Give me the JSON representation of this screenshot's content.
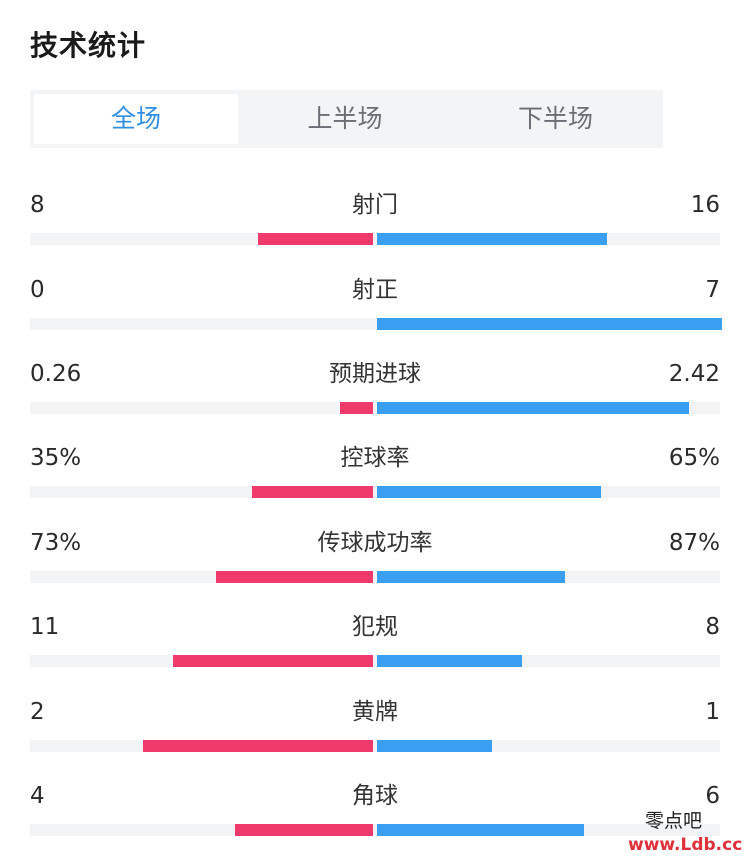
{
  "header": {
    "title": "技术统计"
  },
  "tabs": [
    {
      "label": "全场",
      "active": true
    },
    {
      "label": "上半场",
      "active": false
    },
    {
      "label": "下半场",
      "active": false
    }
  ],
  "stats": [
    {
      "label": "射门",
      "home": "8",
      "away": "16",
      "home_value": 8,
      "away_value": 16
    },
    {
      "label": "射正",
      "home": "0",
      "away": "7",
      "home_value": 0,
      "away_value": 7
    },
    {
      "label": "预期进球",
      "home": "0.26",
      "away": "2.42",
      "home_value": 0.26,
      "away_value": 2.42
    },
    {
      "label": "控球率",
      "home": "35%",
      "away": "65%",
      "home_value": 35,
      "away_value": 65
    },
    {
      "label": "传球成功率",
      "home": "73%",
      "away": "87%",
      "home_value": 73,
      "away_value": 87
    },
    {
      "label": "犯规",
      "home": "11",
      "away": "8",
      "home_value": 11,
      "away_value": 8
    },
    {
      "label": "黄牌",
      "home": "2",
      "away": "1",
      "home_value": 2,
      "away_value": 1
    },
    {
      "label": "角球",
      "home": "4",
      "away": "6",
      "home_value": 4,
      "away_value": 6
    }
  ],
  "colors": {
    "home": "#f03a6c",
    "away": "#3a9ff0",
    "tab_active": "#2f8fe3"
  },
  "watermark": {
    "line1": "零点吧",
    "line2": "www.Ldb.cc"
  }
}
